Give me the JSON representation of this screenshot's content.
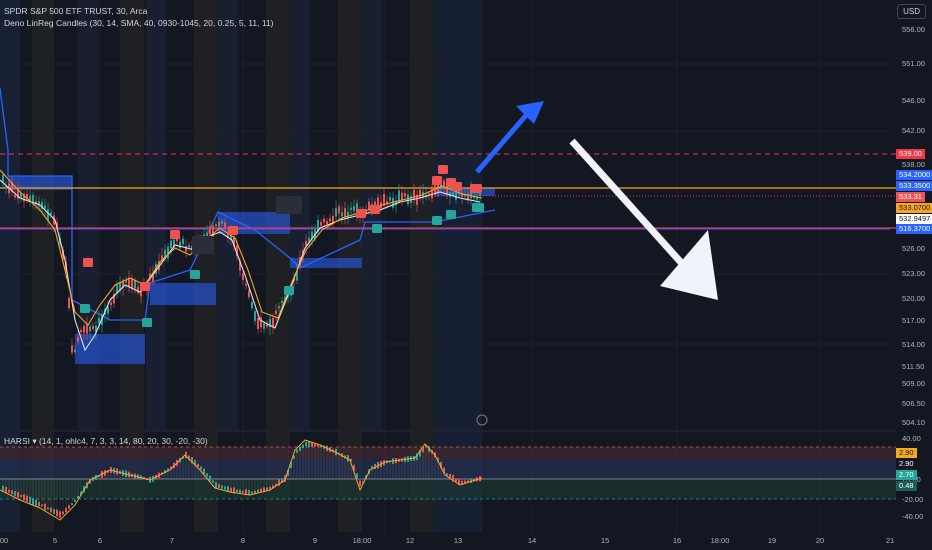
{
  "header": {
    "title": "SPDR S&P 500 ETF TRUST, 30, Arca",
    "indicator": "Deno LinReg Candles (30, 14, SMA, 40, 0930-1045, 20, 0.25, 5, 11, 11)",
    "currency": "USD"
  },
  "price_axis": {
    "ticks": [
      "556.00",
      "551.00",
      "546.00",
      "542.00",
      "538.00",
      "526.00",
      "523.00",
      "520.00",
      "517.00",
      "514.00",
      "511.50",
      "509.00",
      "506.50",
      "504.10"
    ]
  },
  "badges": {
    "red_dashed": "539.00",
    "blue_upper": "534.2000",
    "blue_level": "533.3500",
    "last_price": "533.31",
    "orange": "533.0700",
    "white": "532.9497",
    "blue_lower": "516.3700"
  },
  "oscillator": {
    "title": "HARSI ▾ (14, 1, ohlc4, 7, 3, 3, 14, 80, 20, 30, -20, -30)",
    "ticks": [
      "40.00",
      "20.00",
      "-20.00",
      "-40.00"
    ],
    "badges": {
      "orange": "2.90",
      "white": "2.90",
      "green": "0.48",
      "teal": "2.70"
    }
  },
  "time_axis": {
    "labels": [
      "5",
      "6",
      "7",
      "8",
      "9",
      "18:00",
      "12",
      "13",
      "14",
      "15",
      "16",
      "18:00",
      "19",
      "20",
      "21",
      "00"
    ]
  },
  "colors": {
    "background": "#131722",
    "up": "#26a69a",
    "down": "#ef5350",
    "orange_line": "#f5a623",
    "red_line": "#f23645",
    "blue_band": "#2962ff"
  }
}
